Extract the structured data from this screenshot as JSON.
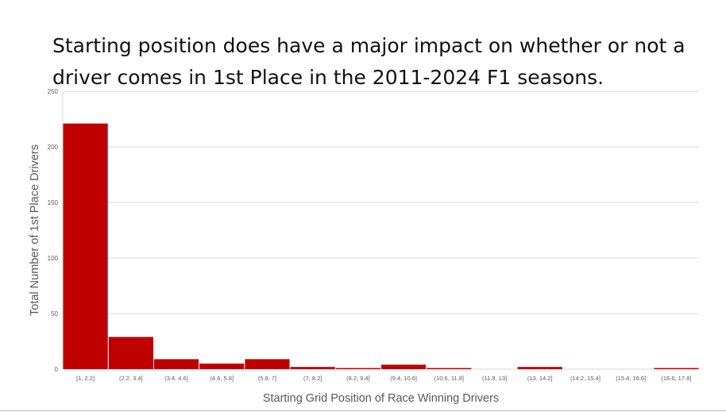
{
  "slide": {
    "title": "Starting position does have a major impact on whether or not a driver comes in 1st Place in the 2011-2024 F1 seasons."
  },
  "chart_data": {
    "type": "bar",
    "title": "",
    "xlabel": "Starting Grid Position of Race Winning Drivers",
    "ylabel": "Total Number of 1st Place Drivers",
    "categories": [
      "[1, 2.2]",
      "(2.2, 3.4]",
      "(3.4, 4.6]",
      "(4.6, 5.8]",
      "(5.8, 7]",
      "(7, 8.2]",
      "(8.2, 9.4]",
      "(9.4, 10.6]",
      "(10.6, 11.8]",
      "(11.8, 13]",
      "(13, 14.2]",
      "(14.2, 15.4]",
      "(15.4, 16.6]",
      "(16.6, 17.8]"
    ],
    "values": [
      221,
      29,
      9,
      5,
      9,
      2,
      1,
      4,
      1,
      0,
      2,
      0,
      0,
      1
    ],
    "ylim": [
      0,
      250
    ],
    "yticks": [
      0,
      50,
      100,
      150,
      200,
      250
    ],
    "grid": true,
    "bar_color": "#c00000"
  }
}
